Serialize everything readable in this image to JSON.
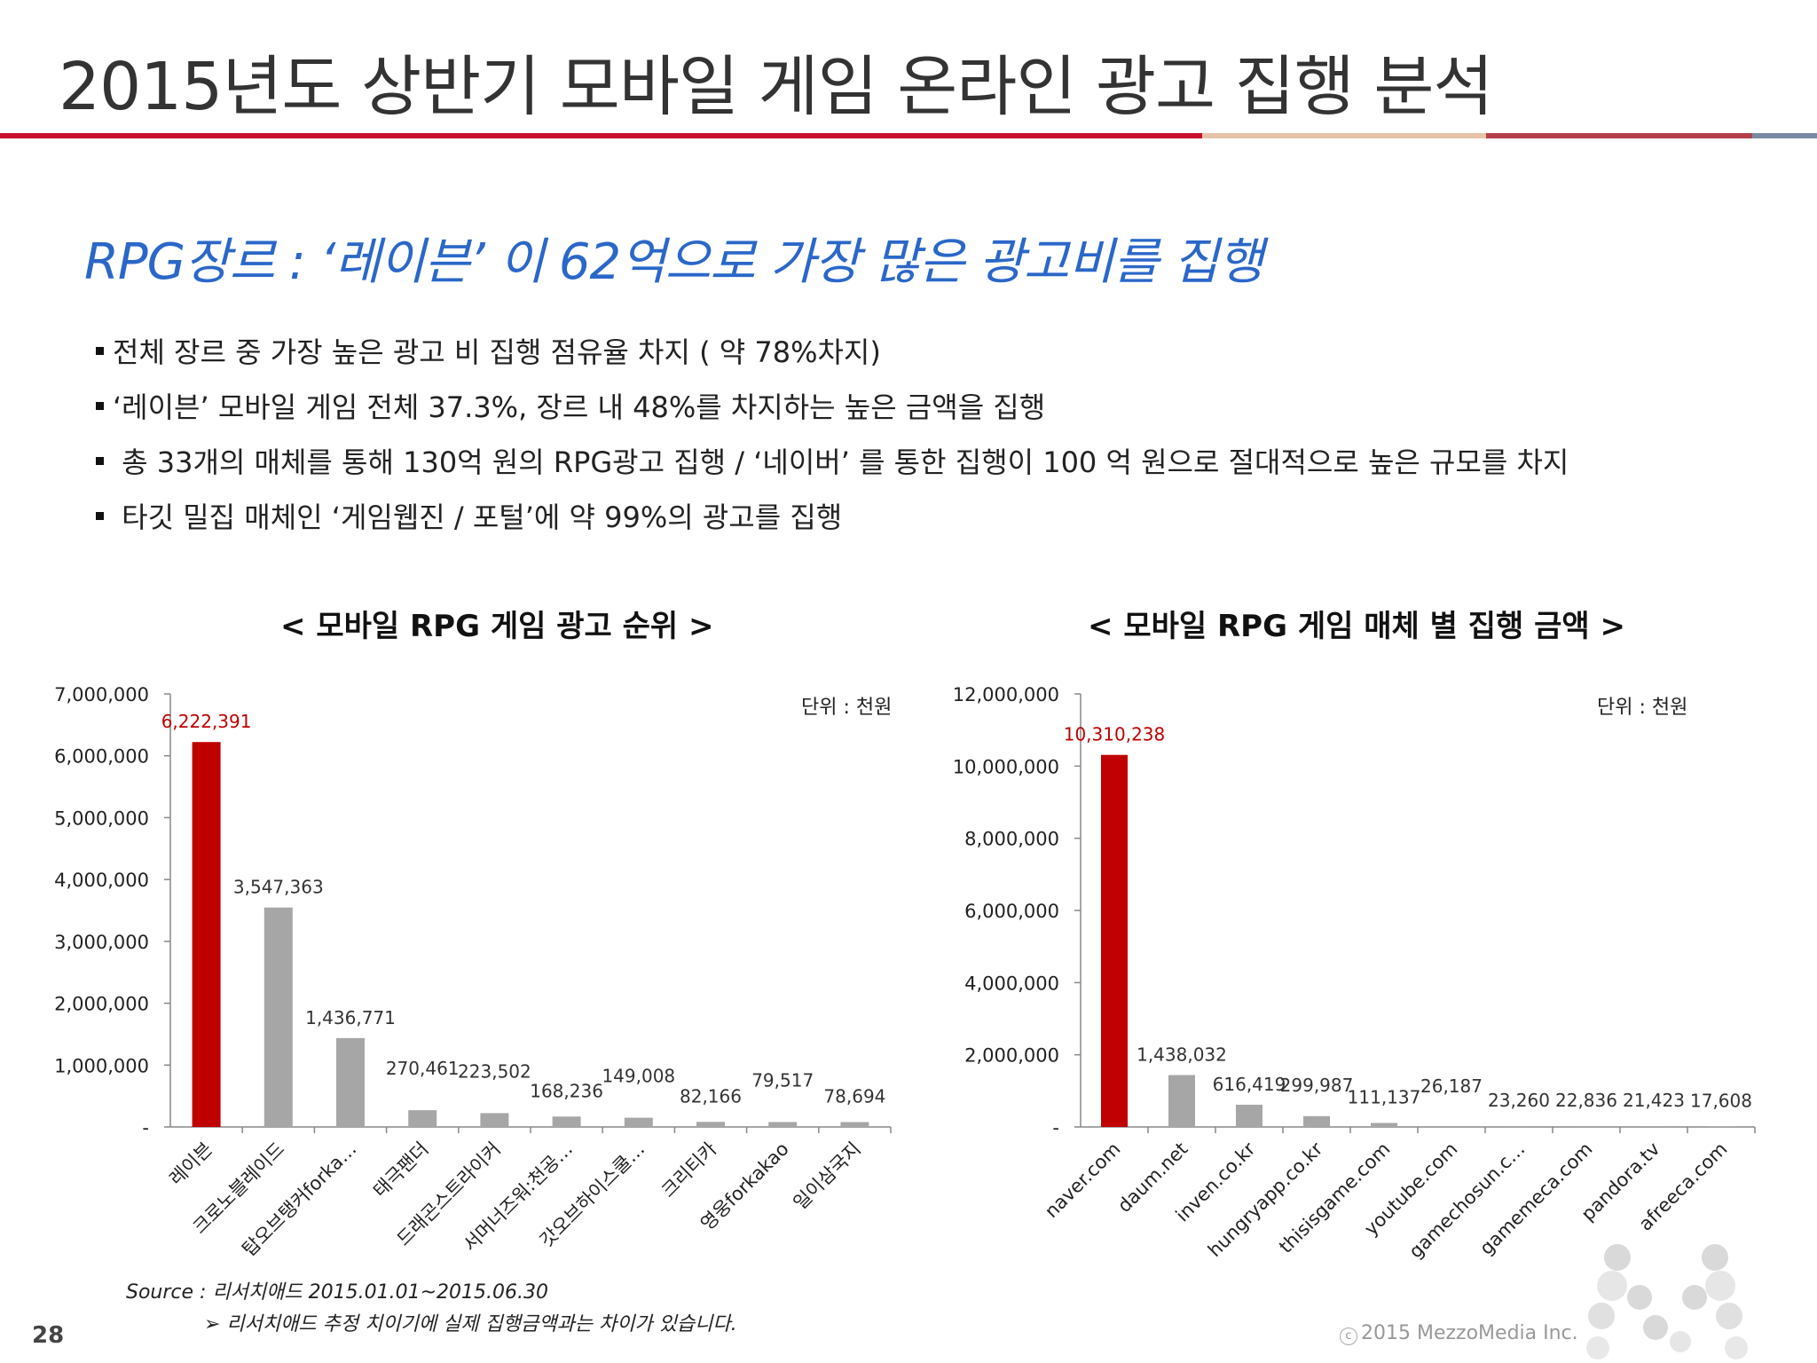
{
  "title": "2015년도 상반기 모바일 게임 온라인 광고 집행 분석",
  "headline": "RPG장르 : ‘레이븐’ 이 62억으로 가장 많은 광고비를 집행",
  "bullets": [
    "전체 장르 중 가장 높은 광고 비 집행 점유율 차지 ( 약 78%차지)",
    "‘레이븐’ 모바일 게임 전체 37.3%, 장르 내 48%를 차지하는 높은 금액을 집행",
    " 총 33개의 매체를 통해 130억 원의 RPG광고 집행 / ‘네이버’ 를 통한 집행이 100 억 원으로  절대적으로 높은 규모를 차지",
    " 타깃 밀집 매체인 ‘게임웹진 / 포털’에 약 99%의 광고를 집행"
  ],
  "chart_data": [
    {
      "type": "bar",
      "title": "< 모바일 RPG 게임 광고 순위 >",
      "unit_label": "단위 : 천원",
      "categories": [
        "레이븐",
        "크로노블레이드",
        "탑오브탱커forka…",
        "태극팬더",
        "드래곤스트라이커",
        "서머너즈워:천공…",
        "갓오브하이스쿨…",
        "크리티카",
        "영웅forkakao",
        "일이삼국지"
      ],
      "values": [
        6222391,
        3547363,
        1436771,
        270461,
        223502,
        168236,
        149008,
        82166,
        79517,
        78694
      ],
      "value_labels": [
        "6,222,391",
        "3,547,363",
        "1,436,771",
        "270,461",
        "223,502",
        "168,236",
        "149,008",
        "82,166",
        "79,517",
        "78,694"
      ],
      "ylim": [
        0,
        7000000
      ],
      "yticks": [
        0,
        1000000,
        2000000,
        3000000,
        4000000,
        5000000,
        6000000,
        7000000
      ],
      "ytick_labels": [
        "-",
        "1,000,000",
        "2,000,000",
        "3,000,000",
        "4,000,000",
        "5,000,000",
        "6,000,000",
        "7,000,000"
      ],
      "highlight_color": "#c00000",
      "bar_color": "#a6a6a6"
    },
    {
      "type": "bar",
      "title": "< 모바일 RPG 게임 매체 별 집행 금액 >",
      "unit_label": "단위 : 천원",
      "categories": [
        "naver.com",
        "daum.net",
        "inven.co.kr",
        "hungryapp.co.kr",
        "thisisgame.com",
        "youtube.com",
        "gamechosun.c…",
        "gamemeca.com",
        "pandora.tv",
        "afreeca.com"
      ],
      "values": [
        10310238,
        1438032,
        616419,
        299987,
        111137,
        26187,
        23260,
        22836,
        21423,
        17608
      ],
      "value_labels": [
        "10,310,238",
        "1,438,032",
        "616,419",
        "299,987",
        "111,137",
        "26,187",
        "23,260",
        "22,836",
        "21,423",
        "17,608"
      ],
      "ylim": [
        0,
        12000000
      ],
      "yticks": [
        0,
        2000000,
        4000000,
        6000000,
        8000000,
        10000000,
        12000000
      ],
      "ytick_labels": [
        "-",
        "2,000,000",
        "4,000,000",
        "6,000,000",
        "8,000,000",
        "10,000,000",
        "12,000,000"
      ],
      "highlight_color": "#c00000",
      "bar_color": "#a6a6a6"
    }
  ],
  "source": "Source : 리서치애드 2015.01.01~2015.06.30",
  "note": "➢ 리서치애드 추정 치이기에 실제 집행금액과는 차이가 있습니다.",
  "page_number": "28",
  "copyright": "2015 MezzoMedia Inc.",
  "copyright_symbol": "c"
}
